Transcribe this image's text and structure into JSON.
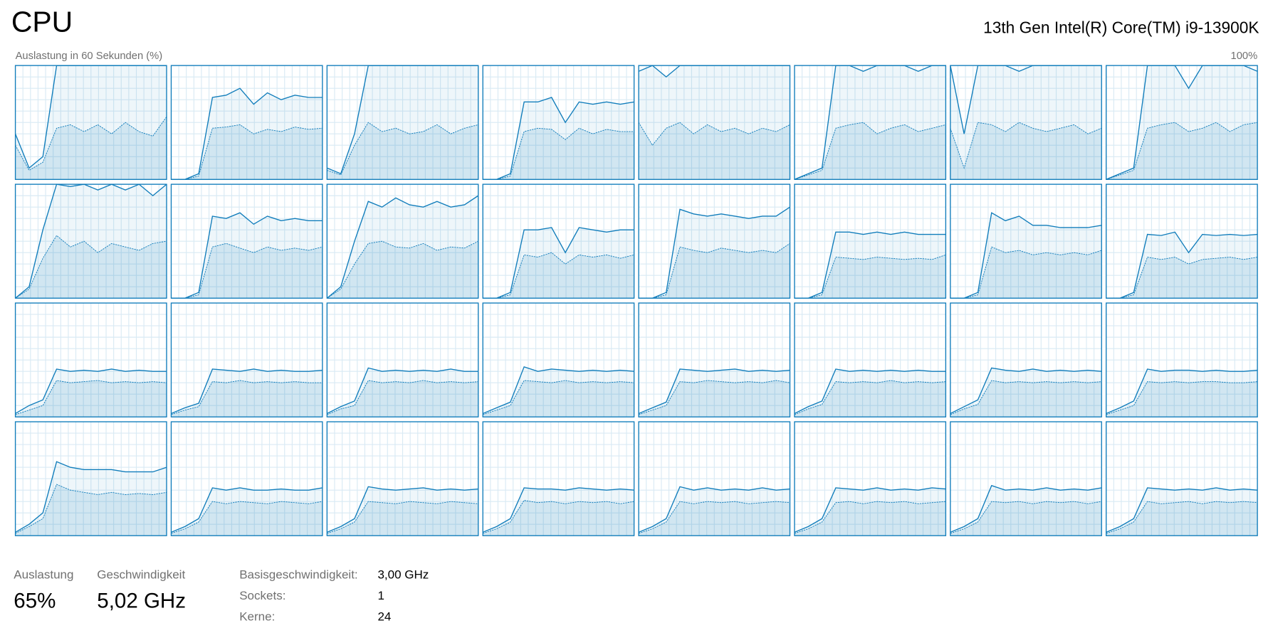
{
  "header": {
    "title": "CPU",
    "processor": "13th Gen Intel(R) Core(TM) i9-13900K"
  },
  "graph": {
    "caption": "Auslastung in 60 Sekunden (%)",
    "max_label": "100%",
    "ylim": [
      0,
      100
    ],
    "columns": 8,
    "cores": [
      {
        "total": [
          40,
          10,
          20,
          100,
          100,
          100,
          100,
          100,
          100,
          100,
          100,
          100
        ],
        "kernel": [
          30,
          8,
          15,
          45,
          48,
          42,
          48,
          40,
          50,
          42,
          38,
          55
        ]
      },
      {
        "total": [
          0,
          0,
          5,
          72,
          74,
          80,
          66,
          76,
          70,
          74,
          72,
          72
        ],
        "kernel": [
          0,
          0,
          3,
          45,
          46,
          48,
          40,
          44,
          42,
          46,
          44,
          45
        ]
      },
      {
        "total": [
          10,
          5,
          40,
          100,
          100,
          100,
          100,
          100,
          100,
          100,
          100,
          100
        ],
        "kernel": [
          8,
          4,
          30,
          50,
          42,
          45,
          40,
          42,
          48,
          40,
          45,
          48
        ]
      },
      {
        "total": [
          0,
          0,
          5,
          68,
          68,
          72,
          50,
          68,
          66,
          68,
          66,
          68
        ],
        "kernel": [
          0,
          0,
          3,
          42,
          45,
          44,
          35,
          45,
          40,
          44,
          42,
          42
        ]
      },
      {
        "total": [
          95,
          100,
          90,
          100,
          100,
          100,
          100,
          100,
          100,
          100,
          100,
          100
        ],
        "kernel": [
          50,
          30,
          45,
          50,
          40,
          48,
          42,
          45,
          40,
          45,
          42,
          48
        ]
      },
      {
        "total": [
          0,
          5,
          10,
          100,
          100,
          95,
          100,
          100,
          100,
          95,
          100,
          100
        ],
        "kernel": [
          0,
          4,
          8,
          45,
          48,
          50,
          40,
          45,
          48,
          42,
          45,
          48
        ]
      },
      {
        "total": [
          100,
          40,
          100,
          100,
          100,
          95,
          100,
          100,
          100,
          100,
          100,
          100
        ],
        "kernel": [
          45,
          10,
          50,
          48,
          42,
          50,
          45,
          42,
          45,
          48,
          40,
          45
        ]
      },
      {
        "total": [
          0,
          5,
          10,
          100,
          100,
          100,
          80,
          100,
          100,
          100,
          100,
          95
        ],
        "kernel": [
          0,
          4,
          8,
          45,
          48,
          50,
          42,
          45,
          50,
          42,
          48,
          50
        ]
      },
      {
        "total": [
          0,
          10,
          60,
          100,
          98,
          100,
          95,
          100,
          95,
          100,
          90,
          100
        ],
        "kernel": [
          0,
          8,
          35,
          55,
          45,
          50,
          40,
          48,
          45,
          42,
          48,
          50
        ]
      },
      {
        "total": [
          0,
          0,
          5,
          72,
          70,
          75,
          65,
          72,
          68,
          70,
          68,
          68
        ],
        "kernel": [
          0,
          0,
          3,
          45,
          48,
          44,
          40,
          45,
          42,
          44,
          42,
          45
        ]
      },
      {
        "total": [
          0,
          10,
          50,
          85,
          80,
          88,
          82,
          80,
          85,
          80,
          82,
          90
        ],
        "kernel": [
          0,
          8,
          30,
          48,
          50,
          45,
          44,
          48,
          42,
          45,
          44,
          50
        ]
      },
      {
        "total": [
          0,
          0,
          5,
          60,
          60,
          62,
          40,
          62,
          60,
          58,
          60,
          60
        ],
        "kernel": [
          0,
          0,
          3,
          38,
          36,
          40,
          30,
          38,
          36,
          38,
          35,
          38
        ]
      },
      {
        "total": [
          0,
          0,
          5,
          78,
          74,
          72,
          74,
          72,
          70,
          72,
          72,
          80
        ],
        "kernel": [
          0,
          0,
          3,
          45,
          42,
          40,
          44,
          42,
          40,
          42,
          40,
          48
        ]
      },
      {
        "total": [
          0,
          0,
          5,
          58,
          58,
          56,
          58,
          56,
          58,
          56,
          56,
          56
        ],
        "kernel": [
          0,
          0,
          3,
          36,
          35,
          34,
          36,
          35,
          34,
          35,
          34,
          38
        ]
      },
      {
        "total": [
          0,
          0,
          5,
          75,
          68,
          72,
          64,
          64,
          62,
          62,
          62,
          64
        ],
        "kernel": [
          0,
          0,
          3,
          45,
          40,
          42,
          38,
          40,
          38,
          40,
          38,
          42
        ]
      },
      {
        "total": [
          0,
          0,
          5,
          56,
          55,
          58,
          40,
          56,
          55,
          56,
          55,
          56
        ],
        "kernel": [
          0,
          0,
          3,
          36,
          34,
          36,
          30,
          34,
          35,
          36,
          34,
          36
        ]
      },
      {
        "total": [
          3,
          10,
          15,
          42,
          40,
          41,
          40,
          42,
          40,
          41,
          40,
          40
        ],
        "kernel": [
          2,
          6,
          10,
          32,
          30,
          31,
          32,
          30,
          31,
          30,
          31,
          30
        ]
      },
      {
        "total": [
          3,
          8,
          12,
          42,
          41,
          40,
          42,
          40,
          41,
          40,
          40,
          41
        ],
        "kernel": [
          2,
          6,
          9,
          31,
          30,
          32,
          30,
          31,
          30,
          31,
          30,
          30
        ]
      },
      {
        "total": [
          3,
          9,
          14,
          43,
          40,
          41,
          40,
          41,
          40,
          42,
          40,
          40
        ],
        "kernel": [
          2,
          7,
          10,
          32,
          30,
          31,
          30,
          32,
          30,
          31,
          30,
          31
        ]
      },
      {
        "total": [
          3,
          8,
          13,
          44,
          40,
          42,
          41,
          40,
          41,
          40,
          41,
          40
        ],
        "kernel": [
          2,
          6,
          10,
          32,
          31,
          30,
          32,
          30,
          31,
          30,
          31,
          30
        ]
      },
      {
        "total": [
          3,
          8,
          13,
          42,
          41,
          40,
          41,
          42,
          40,
          41,
          40,
          41
        ],
        "kernel": [
          2,
          6,
          10,
          31,
          30,
          32,
          31,
          30,
          31,
          30,
          32,
          30
        ]
      },
      {
        "total": [
          3,
          9,
          14,
          42,
          40,
          41,
          40,
          41,
          40,
          41,
          40,
          40
        ],
        "kernel": [
          2,
          7,
          11,
          31,
          30,
          31,
          30,
          32,
          30,
          31,
          30,
          31
        ]
      },
      {
        "total": [
          3,
          9,
          15,
          43,
          41,
          40,
          42,
          40,
          41,
          40,
          41,
          40
        ],
        "kernel": [
          2,
          7,
          11,
          32,
          30,
          31,
          30,
          31,
          30,
          31,
          30,
          31
        ]
      },
      {
        "total": [
          3,
          8,
          14,
          42,
          40,
          41,
          41,
          40,
          41,
          40,
          40,
          41
        ],
        "kernel": [
          2,
          6,
          10,
          31,
          30,
          31,
          30,
          31,
          31,
          30,
          30,
          31
        ]
      },
      {
        "total": [
          3,
          10,
          20,
          65,
          60,
          58,
          58,
          58,
          56,
          56,
          56,
          60
        ],
        "kernel": [
          2,
          8,
          15,
          45,
          40,
          38,
          36,
          38,
          36,
          37,
          36,
          38
        ]
      },
      {
        "total": [
          3,
          8,
          15,
          42,
          40,
          42,
          40,
          40,
          41,
          40,
          40,
          42
        ],
        "kernel": [
          2,
          6,
          12,
          30,
          28,
          30,
          29,
          28,
          30,
          29,
          28,
          30
        ]
      },
      {
        "total": [
          3,
          8,
          15,
          43,
          41,
          40,
          41,
          42,
          40,
          41,
          40,
          41
        ],
        "kernel": [
          2,
          6,
          12,
          30,
          29,
          28,
          30,
          29,
          28,
          30,
          29,
          28
        ]
      },
      {
        "total": [
          3,
          8,
          15,
          42,
          41,
          41,
          40,
          42,
          41,
          40,
          41,
          40
        ],
        "kernel": [
          2,
          6,
          12,
          31,
          29,
          30,
          28,
          30,
          29,
          30,
          28,
          30
        ]
      },
      {
        "total": [
          3,
          8,
          15,
          43,
          40,
          42,
          40,
          41,
          40,
          42,
          40,
          41
        ],
        "kernel": [
          2,
          6,
          12,
          30,
          28,
          30,
          29,
          30,
          28,
          29,
          30,
          29
        ]
      },
      {
        "total": [
          3,
          8,
          15,
          42,
          41,
          40,
          42,
          40,
          41,
          40,
          42,
          41
        ],
        "kernel": [
          2,
          6,
          12,
          29,
          30,
          28,
          30,
          29,
          30,
          28,
          29,
          30
        ]
      },
      {
        "total": [
          3,
          8,
          15,
          44,
          40,
          41,
          40,
          42,
          40,
          41,
          40,
          42
        ],
        "kernel": [
          2,
          6,
          12,
          30,
          29,
          30,
          28,
          30,
          29,
          30,
          28,
          30
        ]
      },
      {
        "total": [
          3,
          8,
          15,
          42,
          41,
          40,
          41,
          40,
          42,
          40,
          41,
          40
        ],
        "kernel": [
          2,
          6,
          12,
          30,
          28,
          29,
          30,
          28,
          30,
          29,
          30,
          29
        ]
      }
    ]
  },
  "stats": [
    {
      "label": "Auslastung",
      "value": "65%"
    },
    {
      "label": "Geschwindigkeit",
      "value": "5,02 GHz"
    }
  ],
  "details": [
    {
      "label": "Basisgeschwindigkeit:",
      "value": "3,00 GHz"
    },
    {
      "label": "Sockets:",
      "value": "1"
    },
    {
      "label": "Kerne:",
      "value": "24"
    }
  ]
}
